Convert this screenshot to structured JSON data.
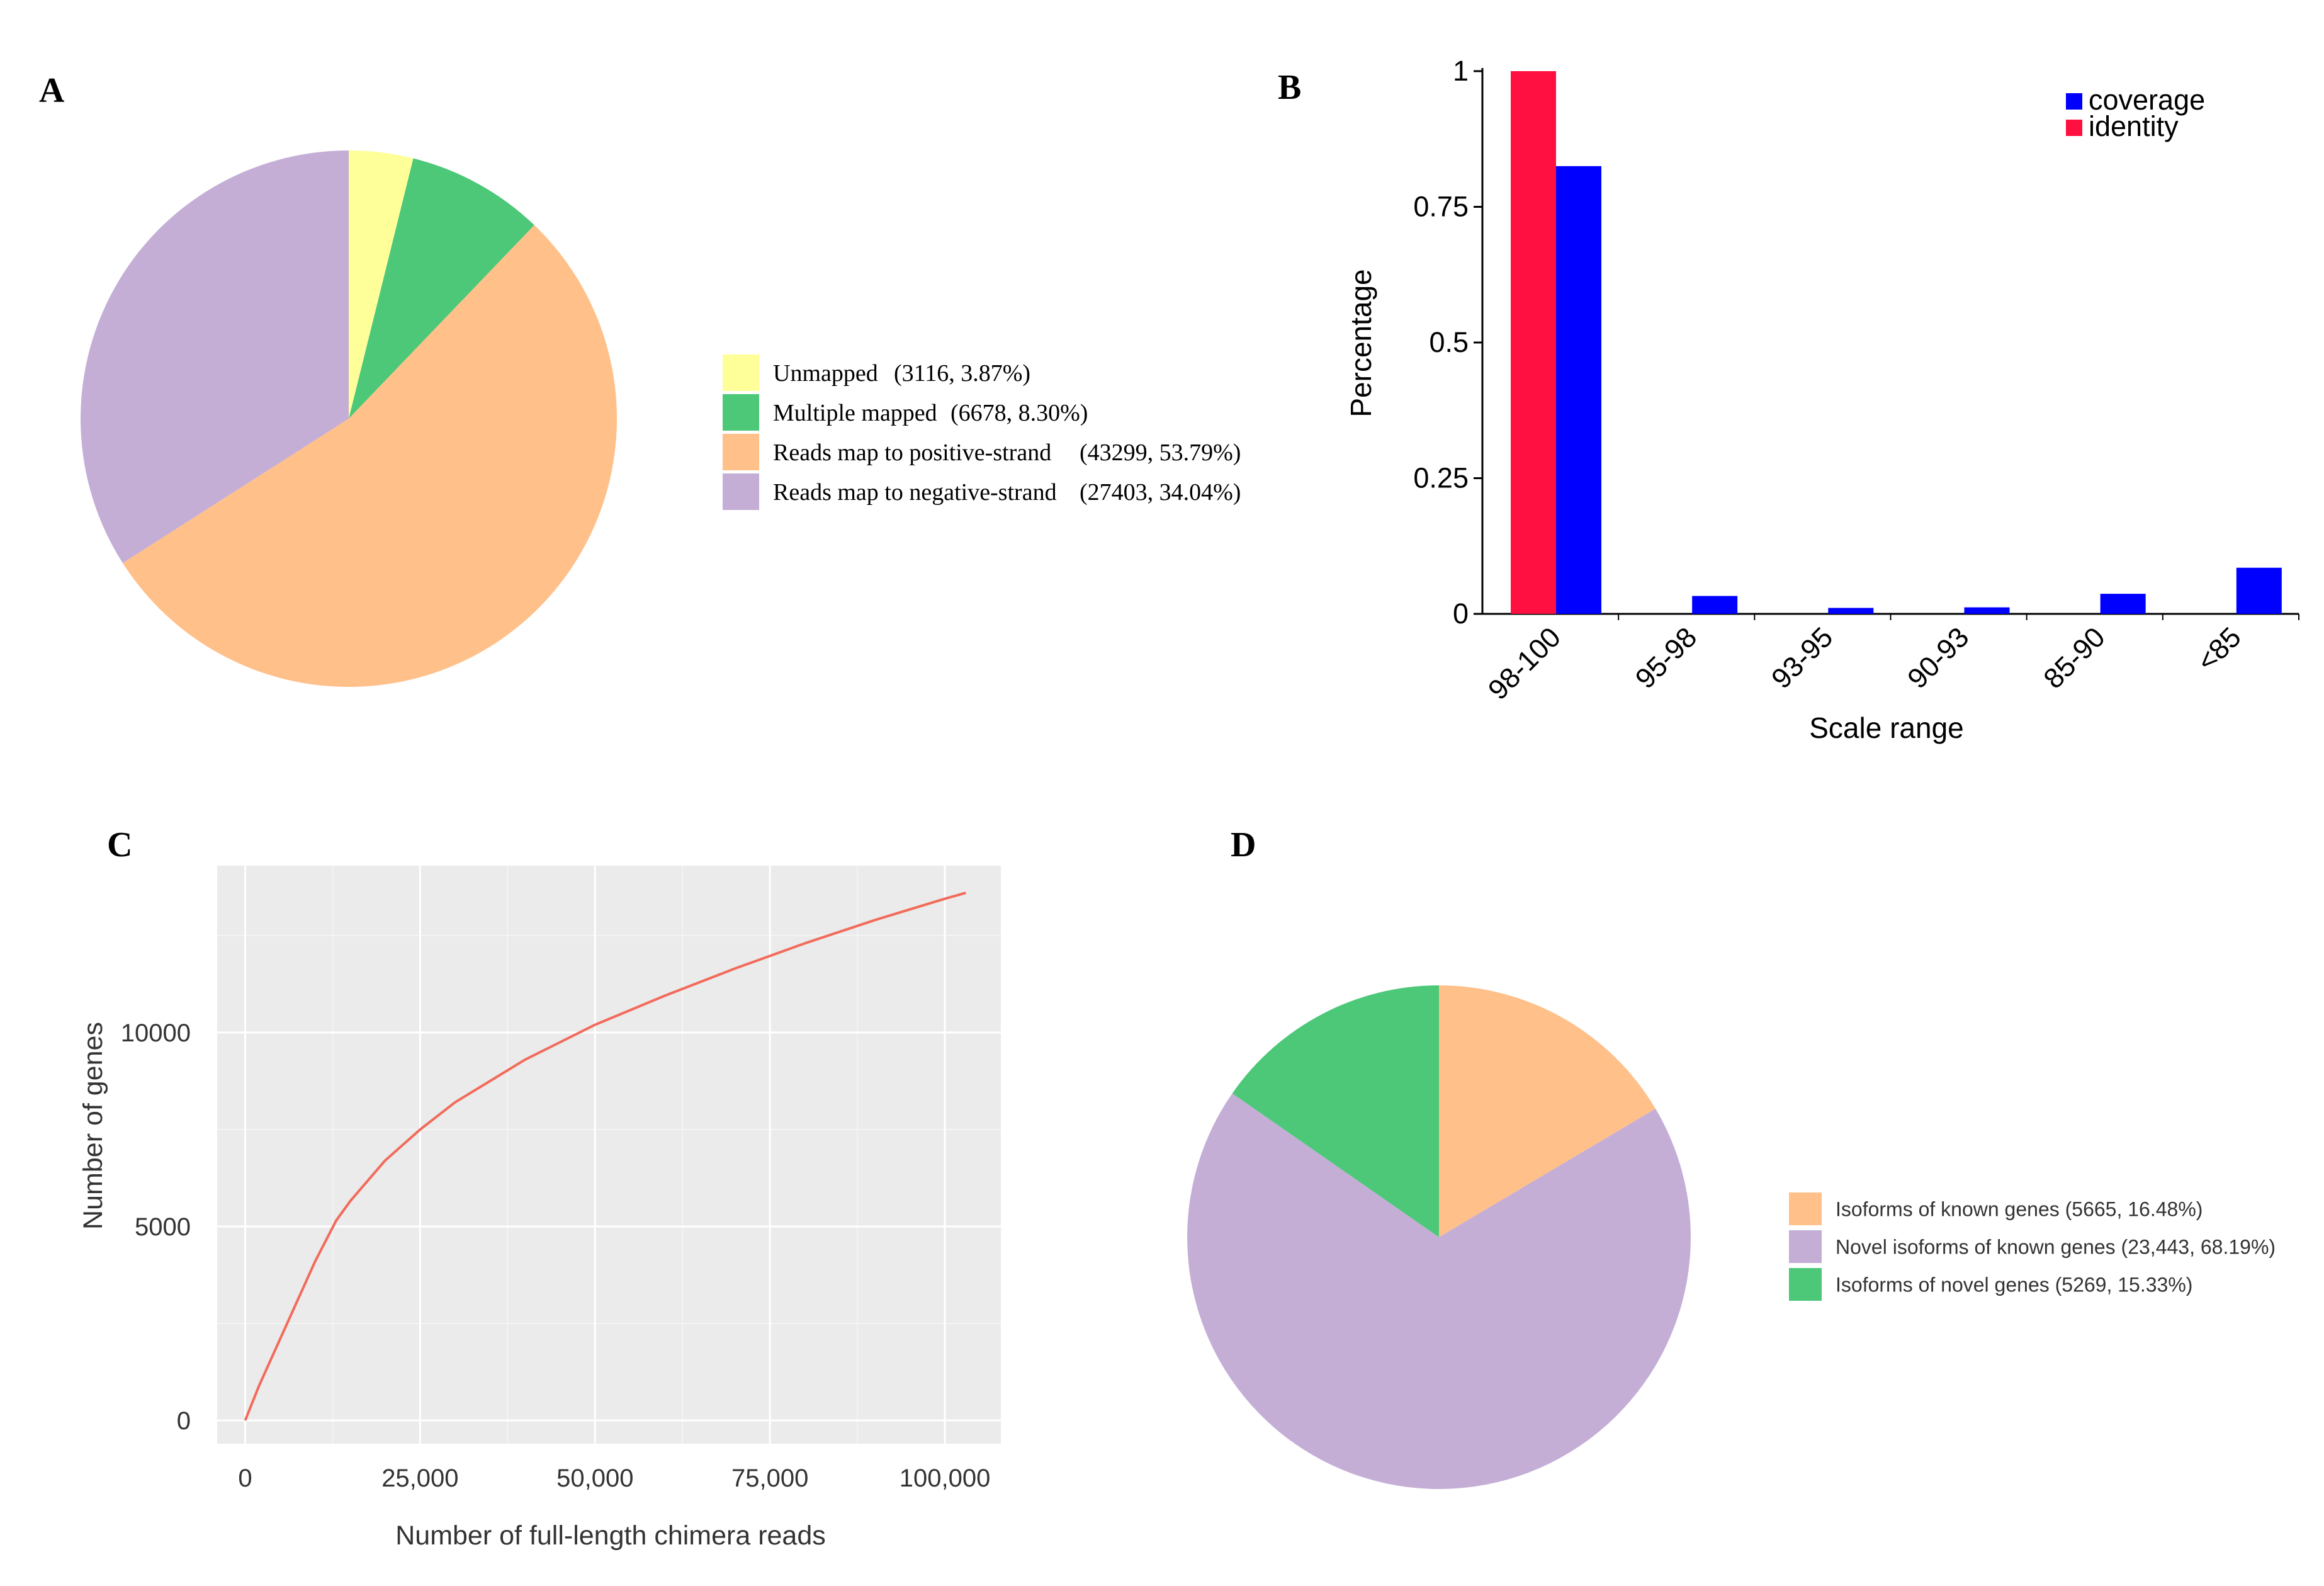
{
  "panels": {
    "A": "A",
    "B": "B",
    "C": "C",
    "D": "D"
  },
  "chart_data": [
    {
      "id": "A",
      "type": "pie",
      "title": "",
      "categories": [
        "Unmapped",
        "Multiple mapped",
        "Reads map to positive-strand",
        "Reads map to negative-strand"
      ],
      "values": [
        3116,
        6678,
        43299,
        27403
      ],
      "percents": [
        3.87,
        8.3,
        53.79,
        34.04
      ],
      "colors": [
        "#FFFF99",
        "#4CC878",
        "#FFC08A",
        "#C4AED6"
      ],
      "legend": [
        {
          "label": "Unmapped",
          "detail": "(3116, 3.87%)"
        },
        {
          "label": "Multiple mapped",
          "detail": "(6678, 8.30%)"
        },
        {
          "label": "Reads map to positive-strand",
          "detail": "(43299, 53.79%)"
        },
        {
          "label": "Reads map to negative-strand",
          "detail": "(27403, 34.04%)"
        }
      ],
      "legend_position": "right"
    },
    {
      "id": "B",
      "type": "bar",
      "title": "",
      "categories": [
        "98-100",
        "95-98",
        "93-95",
        "90-93",
        "85-90",
        "<85"
      ],
      "series": [
        {
          "name": "identity",
          "color": "#FF1040",
          "values": [
            1.0,
            0.0,
            0.0,
            0.0,
            0.0,
            0.0
          ]
        },
        {
          "name": "coverage",
          "color": "#0000FF",
          "values": [
            0.825,
            0.033,
            0.011,
            0.012,
            0.037,
            0.085
          ]
        }
      ],
      "legend": [
        "coverage",
        "identity"
      ],
      "legend_position": "top-right",
      "xlabel": "Scale range",
      "ylabel": "Percentage",
      "ylim": [
        0,
        1
      ],
      "yticks": [
        0,
        0.25,
        0.5,
        0.75,
        1
      ],
      "ytick_labels": [
        "0",
        "0.25",
        "0.5",
        "0.75",
        "1"
      ]
    },
    {
      "id": "C",
      "type": "line",
      "title": "",
      "series": [
        {
          "name": "genes",
          "color": "#F26B5B",
          "x": [
            0,
            2000,
            5000,
            8000,
            10000,
            13000,
            15000,
            20000,
            25000,
            30000,
            40000,
            50000,
            60000,
            70000,
            80000,
            90000,
            100000,
            103000
          ],
          "y": [
            0,
            900,
            2100,
            3300,
            4100,
            5150,
            5650,
            6700,
            7500,
            8200,
            9300,
            10200,
            10950,
            11650,
            12300,
            12900,
            13450,
            13600
          ]
        }
      ],
      "xlabel": "Number of full-length chimera reads",
      "ylabel": "Number of genes",
      "xlim": [
        -4000,
        108000
      ],
      "ylim": [
        -600,
        14300
      ],
      "xticks": [
        0,
        25000,
        50000,
        75000,
        100000
      ],
      "xtick_labels": [
        "0",
        "25,000",
        "50,000",
        "75,000",
        "100,000"
      ],
      "yticks": [
        0,
        5000,
        10000
      ],
      "ytick_labels": [
        "0",
        "5000",
        "10000"
      ],
      "grid": true
    },
    {
      "id": "D",
      "type": "pie",
      "title": "",
      "categories": [
        "Isoforms of known genes",
        "Novel isoforms of known genes",
        "Isoforms of novel genes"
      ],
      "values": [
        5665,
        23443,
        5269
      ],
      "percents": [
        16.48,
        68.19,
        15.33
      ],
      "colors": [
        "#FFC08A",
        "#C4AED6",
        "#4CC878"
      ],
      "legend": [
        {
          "label": "Isoforms of known genes (5665,  16.48%)"
        },
        {
          "label": "Novel isoforms of known genes (23,443, 68.19%)"
        },
        {
          "label": "Isoforms of novel genes (5269,  15.33%)"
        }
      ],
      "legend_position": "right"
    }
  ]
}
